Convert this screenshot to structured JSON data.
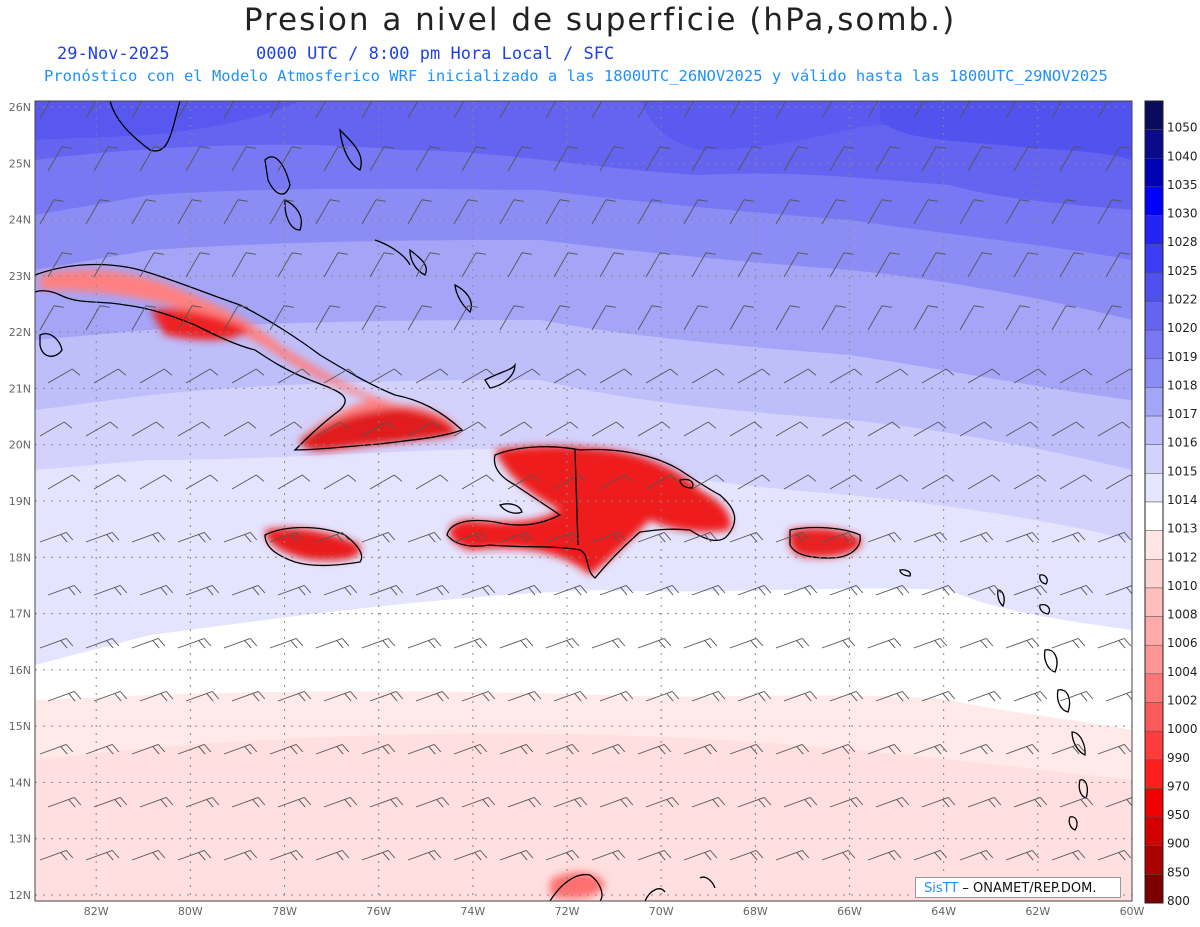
{
  "header": {
    "title": "Presion a nivel de superficie (hPa,somb.)",
    "date": "29-Nov-2025",
    "time_info": "0000 UTC / 8:00 pm Hora Local / SFC",
    "model_info": "Pronóstico con el Modelo Atmosferico WRF inicializado a las 1800UTC_26NOV2025 y válido hasta las  1800UTC_29NOV2025"
  },
  "map": {
    "lat_labels": [
      "26N",
      "25N",
      "24N",
      "23N",
      "22N",
      "21N",
      "20N",
      "19N",
      "18N",
      "17N",
      "16N",
      "15N",
      "14N",
      "13N",
      "12N"
    ],
    "lon_labels": [
      "82W",
      "80W",
      "78W",
      "76W",
      "74W",
      "72W",
      "70W",
      "68W",
      "66W",
      "64W",
      "62W",
      "60W"
    ],
    "lat_range": [
      12,
      26
    ],
    "lon_range": [
      -83.3,
      -60
    ],
    "grid": "dotted"
  },
  "colorbar": {
    "levels": [
      "1050",
      "1040",
      "1035",
      "1030",
      "1028",
      "1025",
      "1022",
      "1020",
      "1019",
      "1018",
      "1017",
      "1016",
      "1015",
      "1014",
      "1013",
      "1012",
      "1010",
      "1008",
      "1006",
      "1004",
      "1002",
      "1000",
      "990",
      "970",
      "950",
      "900",
      "850",
      "800"
    ],
    "colors": [
      "#0b0b5e",
      "#0a0a8a",
      "#0000b4",
      "#0000ff",
      "#2323f5",
      "#3c3cf5",
      "#5050f0",
      "#6464f0",
      "#7878f5",
      "#8c8cf5",
      "#a5a5f8",
      "#bebefa",
      "#d2d2fc",
      "#e6e6ff",
      "#ffffff",
      "#ffe6e6",
      "#ffd2d2",
      "#ffbebe",
      "#ffaaaa",
      "#ff9696",
      "#ff7878",
      "#ff5a5a",
      "#ff3c3c",
      "#ff1e1e",
      "#f00000",
      "#d20000",
      "#aa0000",
      "#7a0000"
    ]
  },
  "credit": {
    "brand": "SisTT",
    "text": " – ONAMET/REP.DOM."
  }
}
